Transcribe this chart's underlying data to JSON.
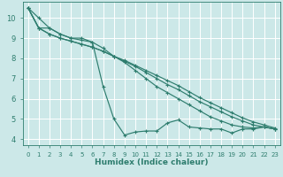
{
  "xlabel": "Humidex (Indice chaleur)",
  "background_color": "#cce8e8",
  "grid_color": "#ffffff",
  "line_color": "#2e7d6e",
  "xlim": [
    -0.5,
    23.5
  ],
  "ylim": [
    3.7,
    10.8
  ],
  "xticks": [
    0,
    1,
    2,
    3,
    4,
    5,
    6,
    7,
    8,
    9,
    10,
    11,
    12,
    13,
    14,
    15,
    16,
    17,
    18,
    19,
    20,
    21,
    22,
    23
  ],
  "yticks": [
    4,
    5,
    6,
    7,
    8,
    9,
    10
  ],
  "series": [
    [
      10.5,
      10.0,
      9.5,
      9.2,
      9.0,
      9.0,
      8.8,
      6.6,
      5.0,
      4.2,
      4.35,
      4.4,
      4.4,
      4.8,
      4.95,
      4.6,
      4.55,
      4.5,
      4.5,
      4.3,
      4.5,
      4.5,
      4.6,
      4.5
    ],
    [
      10.5,
      9.5,
      9.5,
      9.2,
      9.0,
      8.9,
      8.8,
      8.5,
      8.1,
      7.8,
      7.4,
      7.0,
      6.6,
      6.3,
      6.0,
      5.7,
      5.4,
      5.1,
      4.9,
      4.7,
      4.6,
      4.55,
      4.6,
      4.5
    ],
    [
      10.5,
      9.5,
      9.2,
      9.0,
      8.85,
      8.7,
      8.55,
      8.35,
      8.1,
      7.85,
      7.6,
      7.3,
      7.0,
      6.7,
      6.45,
      6.15,
      5.85,
      5.6,
      5.35,
      5.1,
      4.9,
      4.7,
      4.6,
      4.5
    ],
    [
      10.5,
      9.5,
      9.2,
      9.0,
      8.85,
      8.7,
      8.55,
      8.35,
      8.1,
      7.9,
      7.65,
      7.4,
      7.15,
      6.9,
      6.65,
      6.35,
      6.05,
      5.8,
      5.55,
      5.3,
      5.05,
      4.85,
      4.7,
      4.55
    ]
  ]
}
